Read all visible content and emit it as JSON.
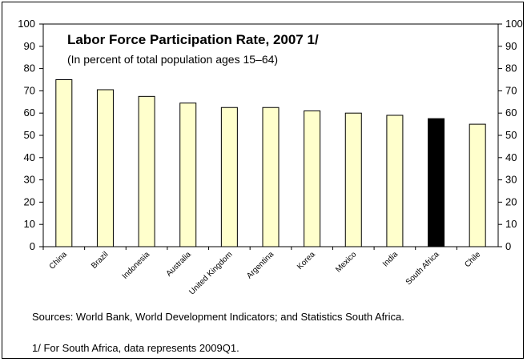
{
  "chart_data": {
    "type": "bar",
    "title": "Labor Force Participation Rate, 2007 1/",
    "subtitle": "(In percent of total population ages 15–64)",
    "categories": [
      "China",
      "Brazil",
      "Indonesia",
      "Australia",
      "United Kingdom",
      "Argentina",
      "Korea",
      "Mexico",
      "India",
      "South Africa",
      "Chile"
    ],
    "values": [
      75,
      70.5,
      67.5,
      64.5,
      62.5,
      62.5,
      61,
      60,
      59,
      57.5,
      55
    ],
    "ylim": [
      0,
      100
    ],
    "yticks": [
      0,
      10,
      20,
      30,
      40,
      50,
      60,
      70,
      80,
      90,
      100
    ],
    "right_axis": true,
    "grid": false,
    "colors": {
      "bar": "#ffffcc",
      "highlight": "#000000",
      "highlight_category": "South Africa",
      "outline": "#000000"
    }
  },
  "notes": {
    "sources": "Sources: World Bank, World Development Indicators; and Statistics South Africa.",
    "footnote": "1/ For South Africa, data represents 2009Q1."
  }
}
